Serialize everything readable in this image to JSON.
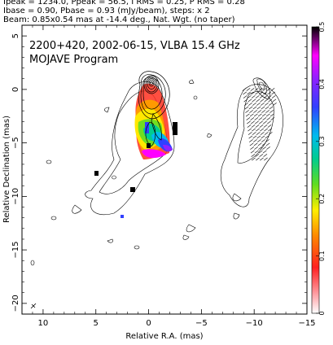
{
  "header": {
    "line1": "Ipeak = 1234.0, Ppeak = 56.5, I RMS = 0.25, P RMS = 0.28",
    "line2": "Ibase = 0.90, Pbase = 0.93 (mJy/beam), steps: x 2",
    "line3": "Beam: 0.85x0.54 mas at -14.4 deg., Nat. Wgt. (no taper)"
  },
  "chart_data": {
    "type": "heatmap",
    "title": "2200+420, 2002-06-15, VLBA 15.4 GHz",
    "subtitle": "MOJAVE Program",
    "xlabel": "Relative R.A. (mas)",
    "ylabel": "Relative Declination (mas)",
    "xlim": [
      12,
      -15
    ],
    "ylim": [
      -21,
      6
    ],
    "x_ticks": [
      10,
      5,
      0,
      -5,
      -10,
      -15
    ],
    "x_tick_labels": [
      "10",
      "5",
      "0",
      "−5",
      "−10",
      "−15"
    ],
    "y_ticks": [
      5,
      0,
      -5,
      -10,
      -15,
      -20
    ],
    "y_tick_labels": [
      "5",
      "0",
      "−5",
      "−10",
      "−15",
      "−20"
    ],
    "colorbar": {
      "range": [
        0,
        0.5
      ],
      "ticks": [
        0,
        0.1,
        0.2,
        0.3,
        0.4,
        0.5
      ],
      "tick_labels": [
        "0",
        "0.1",
        "0.2",
        "0.3",
        "0.4",
        "0.5"
      ],
      "colors": [
        "#ffffff",
        "#ff9aa0",
        "#ff2020",
        "#ff8800",
        "#ffee00",
        "#60dd20",
        "#00cc90",
        "#00bbee",
        "#3040ff",
        "#9020ff",
        "#ff00ff",
        "#000000"
      ]
    },
    "core": {
      "x": 0,
      "y": 0
    },
    "panels": [
      "total intensity contours with fractional polarization colour",
      "total intensity contours with EVPA ticks (offset copy)"
    ]
  }
}
